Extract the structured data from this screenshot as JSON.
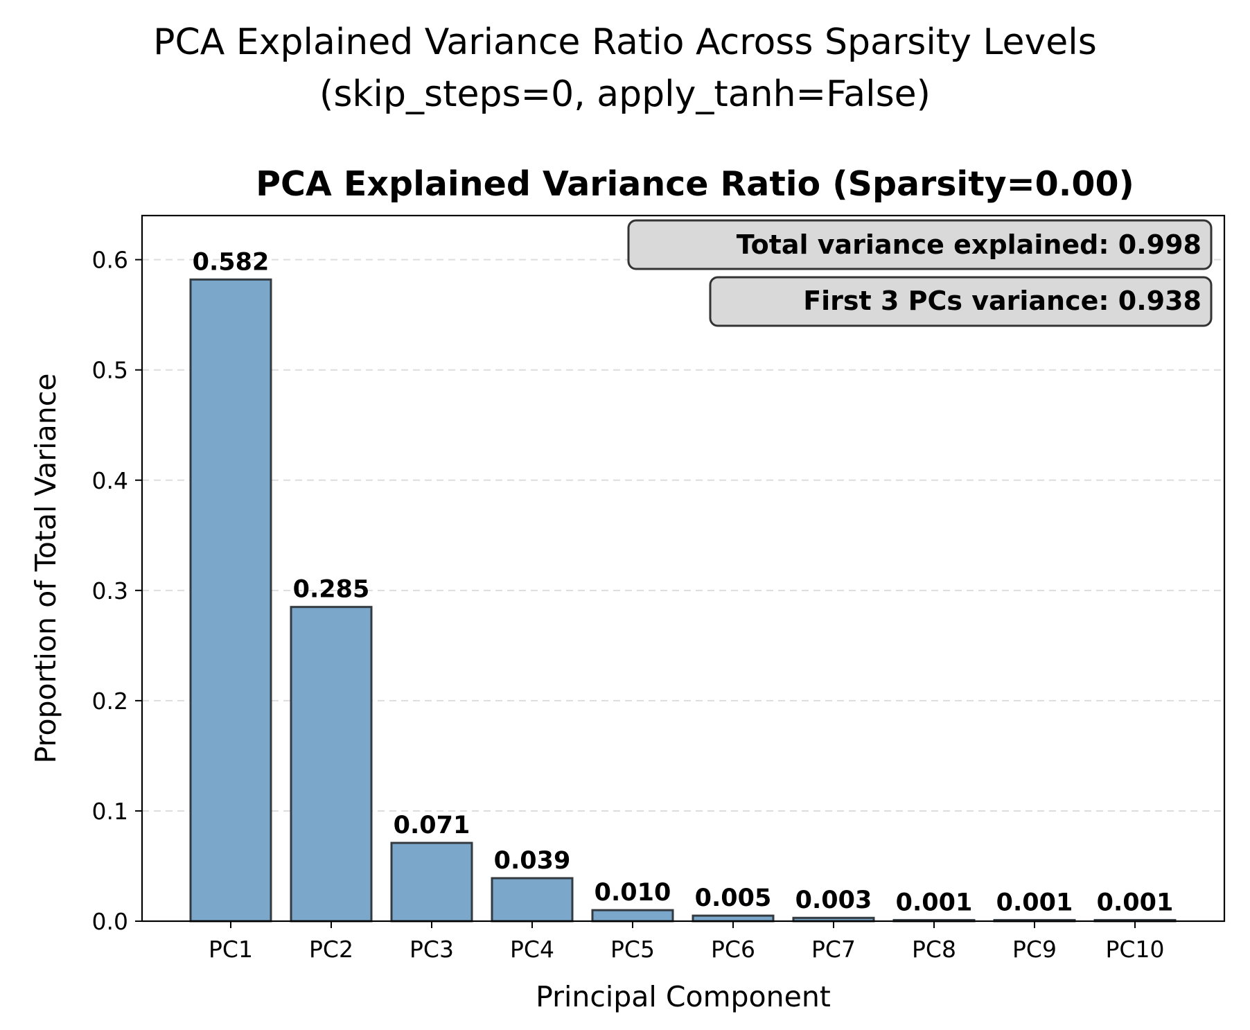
{
  "chart_data": {
    "type": "bar",
    "suptitle_line1": "PCA Explained Variance Ratio Across Sparsity Levels",
    "suptitle_line2": "(skip_steps=0, apply_tanh=False)",
    "title": "PCA Explained Variance Ratio (Sparsity=0.00)",
    "xlabel": "Principal Component",
    "ylabel": "Proportion of Total Variance",
    "categories": [
      "PC1",
      "PC2",
      "PC3",
      "PC4",
      "PC5",
      "PC6",
      "PC7",
      "PC8",
      "PC9",
      "PC10"
    ],
    "values": [
      0.582,
      0.285,
      0.071,
      0.039,
      0.01,
      0.005,
      0.003,
      0.001,
      0.001,
      0.001
    ],
    "value_labels": [
      "0.582",
      "0.285",
      "0.071",
      "0.039",
      "0.010",
      "0.005",
      "0.003",
      "0.001",
      "0.001",
      "0.001"
    ],
    "ylim": [
      0,
      0.64
    ],
    "yticks": [
      0.0,
      0.1,
      0.2,
      0.3,
      0.4,
      0.5,
      0.6
    ],
    "ytick_labels": [
      "0.0",
      "0.1",
      "0.2",
      "0.3",
      "0.4",
      "0.5",
      "0.6"
    ],
    "grid": "y-dashed",
    "annotations": [
      {
        "text": "Total variance explained: 0.998"
      },
      {
        "text": "First 3 PCs variance: 0.938"
      }
    ],
    "colors": {
      "bar_fill": "#7ba7cb",
      "bar_edge": "#333a40",
      "grid": "#dddddd",
      "annotation_fill": "#d9d9d9",
      "annotation_edge": "#333333"
    }
  }
}
